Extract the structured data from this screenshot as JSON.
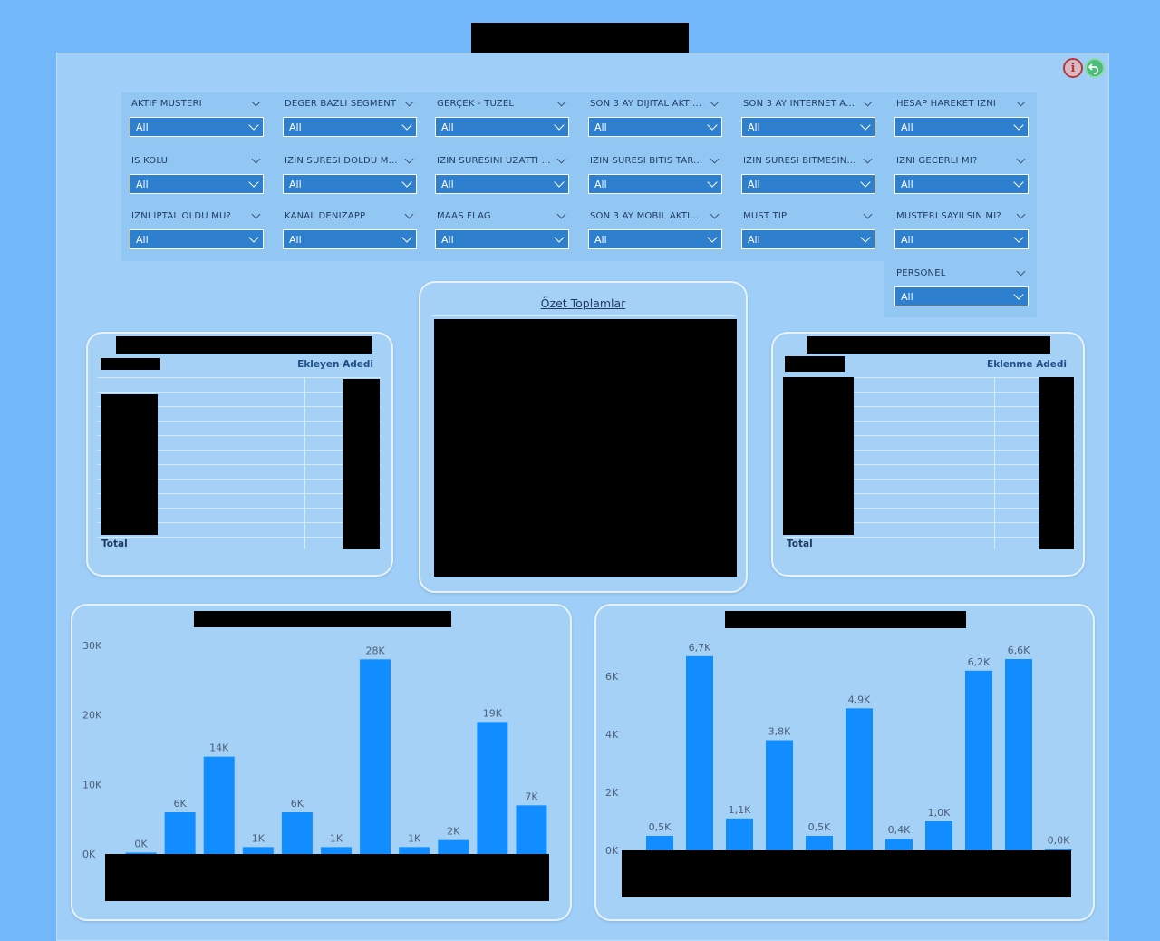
{
  "filters": [
    {
      "label": "AKTIF MUSTERI",
      "value": "All"
    },
    {
      "label": "DEGER BAZLI SEGMENT",
      "value": "All"
    },
    {
      "label": "GERÇEK - TUZEL",
      "value": "All"
    },
    {
      "label": "SON 3 AY DIJITAL AKTI...",
      "value": "All"
    },
    {
      "label": "SON 3 AY INTERNET A...",
      "value": "All"
    },
    {
      "label": "HESAP HAREKET IZNI",
      "value": "All"
    },
    {
      "label": "IS KOLU",
      "value": "All"
    },
    {
      "label": "IZIN SURESI DOLDU M...",
      "value": "All"
    },
    {
      "label": "IZIN SURESINI UZATTI ...",
      "value": "All"
    },
    {
      "label": "IZIN SURESI BITIS TAR...",
      "value": "All"
    },
    {
      "label": "IZIN SURESI BITMESIN...",
      "value": "All"
    },
    {
      "label": "IZNI GECERLI MI?",
      "value": "All"
    },
    {
      "label": "IZNI IPTAL OLDU MU?",
      "value": "All"
    },
    {
      "label": "KANAL DENIZAPP",
      "value": "All"
    },
    {
      "label": "MAAS FLAG",
      "value": "All"
    },
    {
      "label": "SON 3 AY MOBIL AKTI...",
      "value": "All"
    },
    {
      "label": "MUST TIP",
      "value": "All"
    },
    {
      "label": "MUSTERI SAYILSIN MI?",
      "value": "All"
    },
    {
      "label": "PERSONEL",
      "value": "All"
    }
  ],
  "icons": {
    "info": "info-icon",
    "back": "back-arrow-icon"
  },
  "left_table": {
    "value_header": "Ekleyen Adedi",
    "total_label": "Total"
  },
  "summary": {
    "title": "Özet Toplamlar"
  },
  "right_table": {
    "value_header": "Eklenme Adedi",
    "total_label": "Total"
  },
  "colors": {
    "bar": "#118dff",
    "background": "#73b7fb",
    "card": "#a6d1f6",
    "slicer": "#2f7fcf"
  },
  "chart_data": [
    {
      "type": "bar",
      "values": [
        0.2,
        6,
        14,
        1,
        6,
        1,
        28,
        1,
        2,
        19,
        7
      ],
      "labels": [
        "0K",
        "6K",
        "14K",
        "1K",
        "6K",
        "1K",
        "28K",
        "1K",
        "2K",
        "19K",
        "7K"
      ],
      "yticks": [
        "0K",
        "10K",
        "20K",
        "30K"
      ],
      "ylim": [
        0,
        30
      ]
    },
    {
      "type": "bar",
      "values": [
        0.5,
        6.7,
        1.1,
        3.8,
        0.5,
        4.9,
        0.4,
        1.0,
        6.2,
        6.6,
        0.04
      ],
      "labels": [
        "0,5K",
        "6,7K",
        "1,1K",
        "3,8K",
        "0,5K",
        "4,9K",
        "0,4K",
        "1,0K",
        "6,2K",
        "6,6K",
        "0,0K"
      ],
      "yticks": [
        "0K",
        "2K",
        "4K",
        "6K"
      ],
      "ylim": [
        0,
        6.6
      ]
    }
  ]
}
